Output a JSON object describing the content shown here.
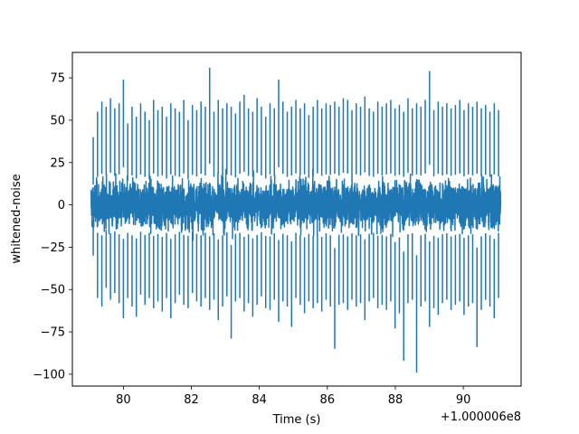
{
  "chart_data": {
    "type": "line",
    "title": "",
    "xlabel": "Time (s)",
    "ylabel": "whitened-noise",
    "x_offset_label": "+1.000006e8",
    "xlim": [
      78.5,
      91.7
    ],
    "ylim": [
      -107,
      90
    ],
    "x_ticks": [
      80,
      82,
      84,
      86,
      88,
      90
    ],
    "x_tick_labels": [
      "80",
      "82",
      "84",
      "86",
      "88",
      "90"
    ],
    "y_ticks": [
      75,
      50,
      25,
      0,
      -25,
      -50,
      -75,
      -100
    ],
    "y_tick_labels": [
      "75",
      "50",
      "25",
      "0",
      "−25",
      "−50",
      "−75",
      "−100"
    ],
    "grid": false,
    "legend": "none",
    "series": [
      {
        "color": "#1f77b4",
        "x_range": [
          79.05,
          91.1
        ],
        "envelope_upper": [
          40,
          55,
          61,
          58,
          63,
          57,
          60,
          74,
          48,
          58,
          52,
          60,
          55,
          50,
          62,
          56,
          58,
          52,
          60,
          57,
          55,
          62,
          50,
          59,
          56,
          61,
          58,
          81,
          55,
          62,
          57,
          60,
          58,
          54,
          61,
          65,
          57,
          55,
          63,
          58,
          52,
          60,
          57,
          74,
          61,
          55,
          58,
          62,
          57,
          60,
          53,
          58,
          62,
          57,
          60,
          59,
          61,
          58,
          63,
          62,
          56,
          60,
          58,
          64,
          57,
          55,
          61,
          58,
          60,
          62,
          57,
          59,
          55,
          63,
          57,
          60,
          58,
          62,
          79,
          56,
          61,
          58,
          60,
          57,
          59,
          62,
          56,
          60,
          58,
          61,
          57,
          59,
          55,
          60,
          56
        ],
        "envelope_lower": [
          -30,
          -55,
          -60,
          -49,
          -56,
          -52,
          -58,
          -67,
          -55,
          -60,
          -66,
          -53,
          -59,
          -55,
          -61,
          -57,
          -63,
          -55,
          -67,
          -58,
          -53,
          -59,
          -61,
          -52,
          -57,
          -60,
          -55,
          -62,
          -56,
          -68,
          -60,
          -54,
          -79,
          -57,
          -55,
          -63,
          -58,
          -66,
          -59,
          -54,
          -61,
          -62,
          -56,
          -69,
          -57,
          -60,
          -72,
          -55,
          -59,
          -64,
          -57,
          -61,
          -58,
          -63,
          -56,
          -60,
          -85,
          -59,
          -58,
          -62,
          -56,
          -60,
          -58,
          -68,
          -57,
          -55,
          -61,
          -59,
          -62,
          -57,
          -73,
          -64,
          -92,
          -58,
          -56,
          -99,
          -60,
          -57,
          -72,
          -61,
          -65,
          -58,
          -56,
          -62,
          -59,
          -57,
          -65,
          -60,
          -58,
          -84,
          -62,
          -56,
          -60,
          -67,
          -55
        ]
      }
    ]
  }
}
